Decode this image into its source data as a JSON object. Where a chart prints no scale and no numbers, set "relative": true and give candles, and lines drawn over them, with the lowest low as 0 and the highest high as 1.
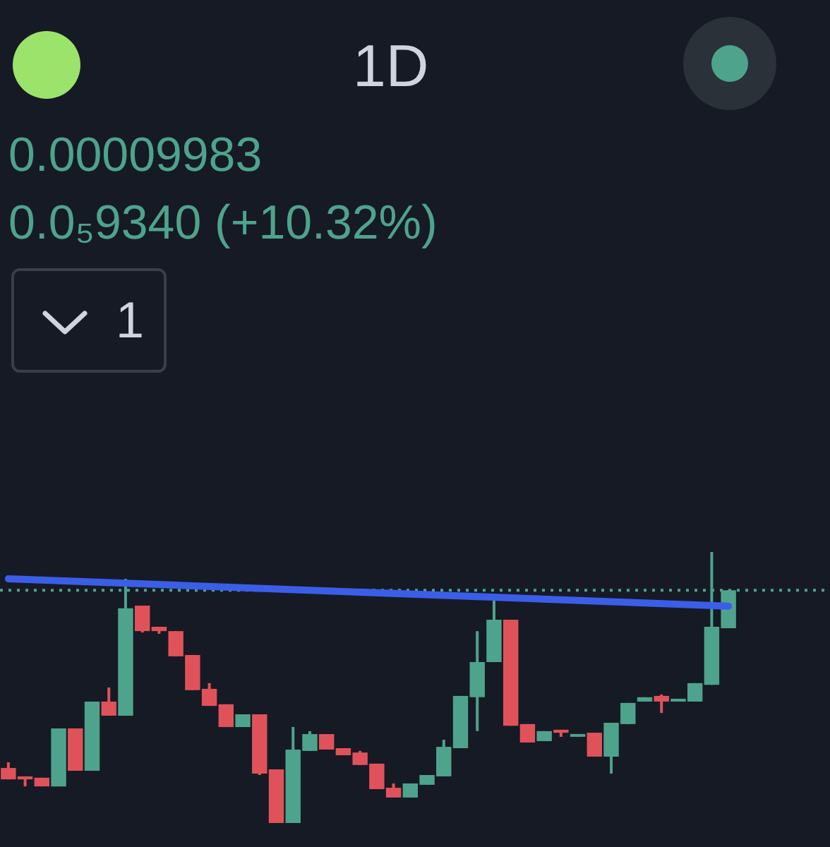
{
  "chart_data": {
    "type": "candlestick",
    "title": "1D",
    "relative": true,
    "tick_labels": false,
    "annotations": [
      "0.00009983",
      "0.0₅9340 (+10.32%)",
      "1"
    ],
    "categories": [
      null,
      null,
      null,
      null,
      null,
      null,
      null,
      null,
      null,
      null,
      null,
      null,
      null,
      null,
      null,
      null,
      null,
      null,
      null,
      null,
      null,
      null,
      null,
      null,
      null,
      null,
      null,
      null,
      null,
      null,
      null,
      null,
      null,
      null,
      null,
      null,
      null,
      null,
      null,
      null,
      null,
      null,
      null,
      null
    ],
    "ohlc": [
      [
        0.203,
        0.224,
        0.161,
        0.161
      ],
      [
        0.172,
        0.172,
        0.135,
        0.161
      ],
      [
        0.167,
        0.167,
        0.135,
        0.135
      ],
      [
        0.135,
        0.349,
        0.135,
        0.349
      ],
      [
        0.349,
        0.349,
        0.193,
        0.193
      ],
      [
        0.193,
        0.448,
        0.193,
        0.448
      ],
      [
        0.448,
        0.5,
        0.396,
        0.396
      ],
      [
        0.396,
        0.901,
        0.396,
        0.792
      ],
      [
        0.802,
        0.802,
        0.703,
        0.708
      ],
      [
        0.724,
        0.724,
        0.698,
        0.708
      ],
      [
        0.708,
        0.708,
        0.615,
        0.615
      ],
      [
        0.62,
        0.62,
        0.49,
        0.49
      ],
      [
        0.495,
        0.516,
        0.432,
        0.432
      ],
      [
        0.438,
        0.438,
        0.354,
        0.354
      ],
      [
        0.354,
        0.401,
        0.354,
        0.401
      ],
      [
        0.401,
        0.401,
        0.177,
        0.182
      ],
      [
        0.198,
        0.198,
        0,
        0
      ],
      [
        0,
        0.354,
        0,
        0.271
      ],
      [
        0.266,
        0.339,
        0.266,
        0.328
      ],
      [
        0.328,
        0.328,
        0.271,
        0.271
      ],
      [
        0.276,
        0.276,
        0.25,
        0.25
      ],
      [
        0.26,
        0.266,
        0.214,
        0.214
      ],
      [
        0.219,
        0.219,
        0.125,
        0.125
      ],
      [
        0.13,
        0.146,
        0.094,
        0.094
      ],
      [
        0.094,
        0.146,
        0.094,
        0.146
      ],
      [
        0.141,
        0.177,
        0.141,
        0.177
      ],
      [
        0.172,
        0.307,
        0.172,
        0.281
      ],
      [
        0.276,
        0.469,
        0.276,
        0.469
      ],
      [
        0.464,
        0.708,
        0.339,
        0.594
      ],
      [
        0.594,
        0.823,
        0.594,
        0.75
      ],
      [
        0.75,
        0.75,
        0.359,
        0.359
      ],
      [
        0.365,
        0.365,
        0.297,
        0.297
      ],
      [
        0.302,
        0.339,
        0.302,
        0.339
      ],
      [
        0.344,
        0.344,
        0.318,
        0.333
      ],
      [
        0.318,
        0.328,
        0.318,
        0.328
      ],
      [
        0.333,
        0.333,
        0.245,
        0.245
      ],
      [
        0.245,
        0.37,
        0.182,
        0.37
      ],
      [
        0.365,
        0.443,
        0.365,
        0.443
      ],
      [
        0.448,
        0.464,
        0.448,
        0.464
      ],
      [
        0.469,
        0.474,
        0.406,
        0.448
      ],
      [
        0.448,
        0.458,
        0.448,
        0.458
      ],
      [
        0.448,
        0.516,
        0.448,
        0.516
      ],
      [
        0.51,
        1,
        0.51,
        0.724
      ],
      [
        0.719,
        0.859,
        0.719,
        0.859
      ]
    ],
    "colors": [
      "#e0525a",
      "#e0525a",
      "#e0525a",
      "#4ea38c",
      "#e0525a",
      "#4ea38c",
      "#e0525a",
      "#4ea38c",
      "#e0525a",
      "#e0525a",
      "#e0525a",
      "#e0525a",
      "#e0525a",
      "#e0525a",
      "#4ea38c",
      "#e0525a",
      "#e0525a",
      "#4ea38c",
      "#4ea38c",
      "#e0525a",
      "#e0525a",
      "#e0525a",
      "#e0525a",
      "#e0525a",
      "#4ea38c",
      "#4ea38c",
      "#4ea38c",
      "#4ea38c",
      "#4ea38c",
      "#4ea38c",
      "#e0525a",
      "#e0525a",
      "#4ea38c",
      "#e0525a",
      "#4ea38c",
      "#e0525a",
      "#4ea38c",
      "#4ea38c",
      "#4ea38c",
      "#e0525a",
      "#4ea38c",
      "#4ea38c",
      "#4ea38c",
      "#4ea38c"
    ],
    "series": [
      {
        "type": "line",
        "color": "#3b5ee8",
        "values": [
          0.901,
          null,
          null,
          null,
          null,
          null,
          null,
          null,
          null,
          null,
          null,
          null,
          null,
          null,
          null,
          null,
          null,
          null,
          null,
          null,
          null,
          null,
          null,
          null,
          null,
          null,
          null,
          null,
          null,
          null,
          null,
          null,
          null,
          null,
          null,
          null,
          null,
          null,
          null,
          null,
          null,
          null,
          null,
          0.8
        ]
      }
    ],
    "ref_lines": [
      {
        "axis": "y",
        "value": 0.859,
        "color": "#4ea38c",
        "line_style": "dotted"
      }
    ]
  }
}
